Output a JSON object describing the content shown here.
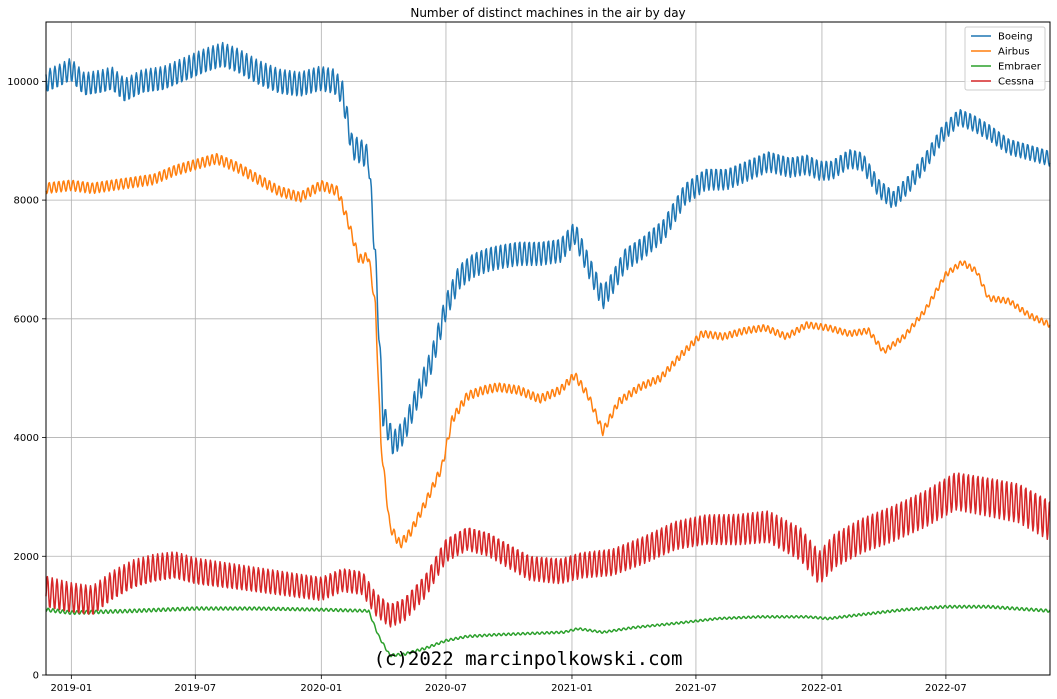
{
  "chart_data": {
    "type": "line",
    "title": "Number of distinct machines in the air by day",
    "xlabel": "",
    "ylabel": "",
    "xlim": [
      "2018-11-25",
      "2022-11-30"
    ],
    "ylim": [
      0,
      11000
    ],
    "x_ticks": [
      "2019-01",
      "2019-07",
      "2020-01",
      "2020-07",
      "2021-01",
      "2021-07",
      "2022-01",
      "2022-07"
    ],
    "y_ticks": [
      0,
      2000,
      4000,
      6000,
      8000,
      10000
    ],
    "grid": true,
    "legend_position": "top-right",
    "watermark": "(c)2022 marcinpolkowski.com",
    "series": [
      {
        "name": "Boeing",
        "color": "#1f77b4",
        "points": [
          [
            "2018-11-25",
            10000
          ],
          [
            "2018-12-15",
            10100
          ],
          [
            "2018-12-31",
            10200
          ],
          [
            "2019-01-20",
            9950
          ],
          [
            "2019-02-15",
            10000
          ],
          [
            "2019-03-01",
            10050
          ],
          [
            "2019-03-20",
            9850
          ],
          [
            "2019-04-15",
            10000
          ],
          [
            "2019-05-15",
            10050
          ],
          [
            "2019-06-15",
            10200
          ],
          [
            "2019-07-15",
            10350
          ],
          [
            "2019-08-10",
            10450
          ],
          [
            "2019-09-01",
            10350
          ],
          [
            "2019-10-01",
            10150
          ],
          [
            "2019-11-01",
            10000
          ],
          [
            "2019-12-01",
            9950
          ],
          [
            "2019-12-30",
            10050
          ],
          [
            "2020-01-20",
            10000
          ],
          [
            "2020-02-01",
            9800
          ],
          [
            "2020-02-15",
            8900
          ],
          [
            "2020-03-01",
            8800
          ],
          [
            "2020-03-10",
            8700
          ],
          [
            "2020-03-20",
            7000
          ],
          [
            "2020-03-31",
            4400
          ],
          [
            "2020-04-15",
            3900
          ],
          [
            "2020-05-01",
            4100
          ],
          [
            "2020-05-20",
            4700
          ],
          [
            "2020-06-10",
            5300
          ],
          [
            "2020-07-01",
            6200
          ],
          [
            "2020-07-20",
            6700
          ],
          [
            "2020-08-10",
            6900
          ],
          [
            "2020-09-01",
            7000
          ],
          [
            "2020-09-20",
            7050
          ],
          [
            "2020-10-15",
            7100
          ],
          [
            "2020-11-15",
            7100
          ],
          [
            "2020-12-15",
            7150
          ],
          [
            "2021-01-05",
            7450
          ],
          [
            "2021-01-25",
            6900
          ],
          [
            "2021-02-15",
            6350
          ],
          [
            "2021-03-01",
            6600
          ],
          [
            "2021-03-20",
            7000
          ],
          [
            "2021-04-15",
            7200
          ],
          [
            "2021-05-15",
            7500
          ],
          [
            "2021-06-15",
            8100
          ],
          [
            "2021-07-15",
            8350
          ],
          [
            "2021-08-15",
            8350
          ],
          [
            "2021-09-15",
            8500
          ],
          [
            "2021-10-15",
            8650
          ],
          [
            "2021-11-15",
            8550
          ],
          [
            "2021-12-10",
            8600
          ],
          [
            "2021-12-28",
            8500
          ],
          [
            "2022-01-15",
            8500
          ],
          [
            "2022-02-10",
            8700
          ],
          [
            "2022-03-01",
            8650
          ],
          [
            "2022-03-25",
            8200
          ],
          [
            "2022-04-15",
            8000
          ],
          [
            "2022-05-10",
            8300
          ],
          [
            "2022-06-01",
            8650
          ],
          [
            "2022-06-25",
            9100
          ],
          [
            "2022-07-20",
            9400
          ],
          [
            "2022-08-10",
            9300
          ],
          [
            "2022-09-01",
            9150
          ],
          [
            "2022-10-01",
            8900
          ],
          [
            "2022-11-01",
            8800
          ],
          [
            "2022-11-30",
            8700
          ]
        ]
      },
      {
        "name": "Airbus",
        "color": "#ff7f0e",
        "points": [
          [
            "2018-11-25",
            8200
          ],
          [
            "2018-12-31",
            8250
          ],
          [
            "2019-02-01",
            8200
          ],
          [
            "2019-03-01",
            8250
          ],
          [
            "2019-04-01",
            8300
          ],
          [
            "2019-05-01",
            8350
          ],
          [
            "2019-06-01",
            8500
          ],
          [
            "2019-07-01",
            8600
          ],
          [
            "2019-08-01",
            8700
          ],
          [
            "2019-09-01",
            8550
          ],
          [
            "2019-10-01",
            8350
          ],
          [
            "2019-11-01",
            8150
          ],
          [
            "2019-12-01",
            8050
          ],
          [
            "2020-01-01",
            8250
          ],
          [
            "2020-01-25",
            8150
          ],
          [
            "2020-02-10",
            7600
          ],
          [
            "2020-02-25",
            7000
          ],
          [
            "2020-03-10",
            7050
          ],
          [
            "2020-03-20",
            6200
          ],
          [
            "2020-03-28",
            3900
          ],
          [
            "2020-04-10",
            2500
          ],
          [
            "2020-04-25",
            2200
          ],
          [
            "2020-05-10",
            2400
          ],
          [
            "2020-06-01",
            2900
          ],
          [
            "2020-06-25",
            3500
          ],
          [
            "2020-07-10",
            4300
          ],
          [
            "2020-08-01",
            4700
          ],
          [
            "2020-08-25",
            4800
          ],
          [
            "2020-09-15",
            4850
          ],
          [
            "2020-10-15",
            4800
          ],
          [
            "2020-11-15",
            4650
          ],
          [
            "2020-12-15",
            4800
          ],
          [
            "2021-01-05",
            5050
          ],
          [
            "2021-01-25",
            4700
          ],
          [
            "2021-02-15",
            4100
          ],
          [
            "2021-03-10",
            4600
          ],
          [
            "2021-04-10",
            4850
          ],
          [
            "2021-05-10",
            5000
          ],
          [
            "2021-06-10",
            5400
          ],
          [
            "2021-07-10",
            5750
          ],
          [
            "2021-08-10",
            5700
          ],
          [
            "2021-09-10",
            5800
          ],
          [
            "2021-10-10",
            5850
          ],
          [
            "2021-11-10",
            5700
          ],
          [
            "2021-12-10",
            5900
          ],
          [
            "2022-01-10",
            5850
          ],
          [
            "2022-02-10",
            5750
          ],
          [
            "2022-03-10",
            5800
          ],
          [
            "2022-04-01",
            5450
          ],
          [
            "2022-05-01",
            5700
          ],
          [
            "2022-06-01",
            6150
          ],
          [
            "2022-07-01",
            6750
          ],
          [
            "2022-07-25",
            6950
          ],
          [
            "2022-08-15",
            6800
          ],
          [
            "2022-09-01",
            6350
          ],
          [
            "2022-10-01",
            6300
          ],
          [
            "2022-11-01",
            6050
          ],
          [
            "2022-11-30",
            5900
          ]
        ]
      },
      {
        "name": "Embraer",
        "color": "#2ca02c",
        "points": [
          [
            "2018-11-25",
            1100
          ],
          [
            "2019-01-01",
            1050
          ],
          [
            "2019-04-01",
            1080
          ],
          [
            "2019-07-01",
            1120
          ],
          [
            "2019-10-01",
            1120
          ],
          [
            "2020-01-01",
            1100
          ],
          [
            "2020-03-10",
            1080
          ],
          [
            "2020-03-25",
            650
          ],
          [
            "2020-04-10",
            330
          ],
          [
            "2020-05-01",
            350
          ],
          [
            "2020-06-01",
            450
          ],
          [
            "2020-07-01",
            580
          ],
          [
            "2020-08-01",
            650
          ],
          [
            "2020-09-15",
            680
          ],
          [
            "2020-11-01",
            700
          ],
          [
            "2020-12-20",
            720
          ],
          [
            "2021-01-10",
            780
          ],
          [
            "2021-02-15",
            720
          ],
          [
            "2021-04-01",
            800
          ],
          [
            "2021-06-01",
            870
          ],
          [
            "2021-08-01",
            950
          ],
          [
            "2021-10-01",
            980
          ],
          [
            "2021-12-10",
            980
          ],
          [
            "2022-01-10",
            950
          ],
          [
            "2022-03-01",
            1020
          ],
          [
            "2022-05-01",
            1100
          ],
          [
            "2022-07-01",
            1150
          ],
          [
            "2022-09-01",
            1150
          ],
          [
            "2022-11-30",
            1080
          ]
        ]
      },
      {
        "name": "Cessna",
        "color": "#d62728",
        "points": [
          [
            "2018-11-25",
            1400
          ],
          [
            "2018-12-31",
            1300
          ],
          [
            "2019-02-01",
            1250
          ],
          [
            "2019-03-01",
            1500
          ],
          [
            "2019-04-01",
            1700
          ],
          [
            "2019-05-01",
            1800
          ],
          [
            "2019-06-01",
            1850
          ],
          [
            "2019-07-01",
            1750
          ],
          [
            "2019-08-01",
            1700
          ],
          [
            "2019-09-01",
            1650
          ],
          [
            "2019-10-01",
            1600
          ],
          [
            "2019-11-01",
            1550
          ],
          [
            "2019-12-01",
            1500
          ],
          [
            "2020-01-01",
            1450
          ],
          [
            "2020-02-01",
            1600
          ],
          [
            "2020-03-01",
            1550
          ],
          [
            "2020-03-20",
            1200
          ],
          [
            "2020-04-10",
            1000
          ],
          [
            "2020-05-01",
            1100
          ],
          [
            "2020-06-01",
            1500
          ],
          [
            "2020-07-01",
            2100
          ],
          [
            "2020-08-01",
            2300
          ],
          [
            "2020-09-01",
            2200
          ],
          [
            "2020-10-01",
            2000
          ],
          [
            "2020-11-01",
            1800
          ],
          [
            "2020-12-15",
            1750
          ],
          [
            "2021-01-15",
            1850
          ],
          [
            "2021-03-01",
            1900
          ],
          [
            "2021-04-15",
            2100
          ],
          [
            "2021-06-01",
            2350
          ],
          [
            "2021-07-15",
            2450
          ],
          [
            "2021-09-01",
            2450
          ],
          [
            "2021-10-15",
            2500
          ],
          [
            "2021-12-01",
            2200
          ],
          [
            "2021-12-28",
            1800
          ],
          [
            "2022-01-20",
            2100
          ],
          [
            "2022-03-01",
            2350
          ],
          [
            "2022-04-15",
            2550
          ],
          [
            "2022-06-01",
            2800
          ],
          [
            "2022-07-15",
            3100
          ],
          [
            "2022-09-01",
            3000
          ],
          [
            "2022-10-15",
            2900
          ],
          [
            "2022-11-30",
            2600
          ]
        ]
      }
    ]
  }
}
